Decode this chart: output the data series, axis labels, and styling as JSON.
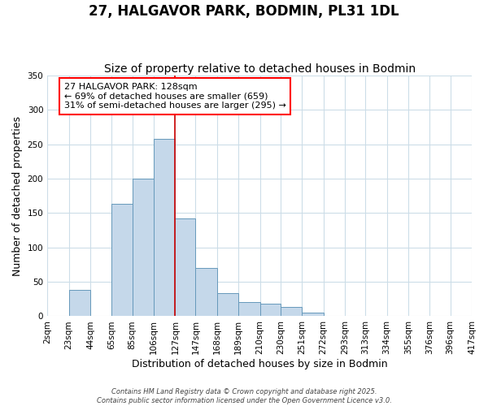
{
  "title": "27, HALGAVOR PARK, BODMIN, PL31 1DL",
  "subtitle": "Size of property relative to detached houses in Bodmin",
  "xlabel": "Distribution of detached houses by size in Bodmin",
  "ylabel": "Number of detached properties",
  "bar_left_edges": [
    2,
    23,
    44,
    65,
    85,
    106,
    127,
    147,
    168,
    189,
    210,
    230,
    251,
    272,
    293,
    313,
    334,
    355,
    376,
    396
  ],
  "bar_heights": [
    0,
    38,
    0,
    163,
    200,
    258,
    142,
    70,
    34,
    21,
    18,
    13,
    5,
    0,
    0,
    0,
    0,
    0,
    0,
    0
  ],
  "bin_widths": [
    21,
    21,
    21,
    20,
    21,
    21,
    20,
    21,
    21,
    21,
    20,
    21,
    21,
    21,
    20,
    21,
    21,
    21,
    20,
    21
  ],
  "tick_labels": [
    "2sqm",
    "23sqm",
    "44sqm",
    "65sqm",
    "85sqm",
    "106sqm",
    "127sqm",
    "147sqm",
    "168sqm",
    "189sqm",
    "210sqm",
    "230sqm",
    "251sqm",
    "272sqm",
    "293sqm",
    "313sqm",
    "334sqm",
    "355sqm",
    "376sqm",
    "396sqm",
    "417sqm"
  ],
  "tick_positions": [
    2,
    23,
    44,
    65,
    85,
    106,
    127,
    147,
    168,
    189,
    210,
    230,
    251,
    272,
    293,
    313,
    334,
    355,
    376,
    396,
    417
  ],
  "xlim": [
    2,
    417
  ],
  "ylim": [
    0,
    350
  ],
  "yticks": [
    0,
    50,
    100,
    150,
    200,
    250,
    300,
    350
  ],
  "bar_color": "#c5d8ea",
  "bar_edge_color": "#6699bb",
  "vline_x": 127,
  "vline_color": "#cc0000",
  "background_color": "#ffffff",
  "grid_color": "#ccdde8",
  "annot_line1": "27 HALGAVOR PARK: 128sqm",
  "annot_line2": "← 69% of detached houses are smaller (659)",
  "annot_line3": "31% of semi-detached houses are larger (295) →",
  "footer1": "Contains HM Land Registry data © Crown copyright and database right 2025.",
  "footer2": "Contains public sector information licensed under the Open Government Licence v3.0.",
  "title_fontsize": 12,
  "subtitle_fontsize": 10,
  "axis_label_fontsize": 9,
  "tick_fontsize": 7.5,
  "annotation_fontsize": 8,
  "footer_fontsize": 6
}
